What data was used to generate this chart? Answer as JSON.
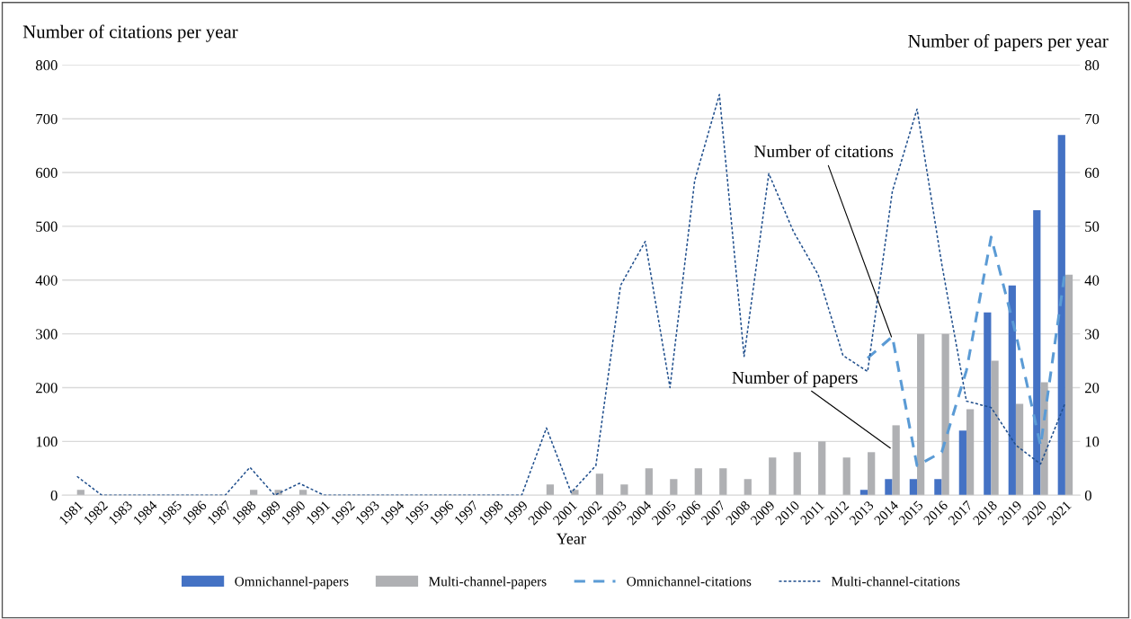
{
  "chart_data": {
    "type": "bar",
    "xlabel": "Year",
    "ylabel": "Number of citations per year",
    "y2label": "Number of papers per year",
    "categories": [
      "1981",
      "1982",
      "1983",
      "1984",
      "1985",
      "1986",
      "1987",
      "1988",
      "1989",
      "1990",
      "1991",
      "1992",
      "1993",
      "1994",
      "1995",
      "1996",
      "1997",
      "1998",
      "1999",
      "2000",
      "2001",
      "2002",
      "2003",
      "2004",
      "2005",
      "2006",
      "2007",
      "2008",
      "2009",
      "2010",
      "2011",
      "2012",
      "2013",
      "2014",
      "2015",
      "2016",
      "2017",
      "2018",
      "2019",
      "2020",
      "2021"
    ],
    "series": [
      {
        "name": "Omnichannel-papers",
        "axis": "y2",
        "color": "#4472c4",
        "values": [
          0,
          0,
          0,
          0,
          0,
          0,
          0,
          0,
          0,
          0,
          0,
          0,
          0,
          0,
          0,
          0,
          0,
          0,
          0,
          0,
          0,
          0,
          0,
          0,
          0,
          0,
          0,
          0,
          0,
          0,
          0,
          0,
          1,
          3,
          3,
          3,
          12,
          34,
          39,
          53,
          67
        ]
      },
      {
        "name": "Multi-channel-papers",
        "axis": "y2",
        "color": "#afb0b3",
        "values": [
          1,
          0,
          0,
          0,
          0,
          0,
          0,
          1,
          1,
          1,
          0,
          0,
          0,
          0,
          0,
          0,
          0,
          0,
          0,
          2,
          1,
          4,
          2,
          5,
          3,
          5,
          5,
          3,
          7,
          8,
          10,
          7,
          8,
          13,
          30,
          30,
          16,
          25,
          17,
          21,
          41
        ]
      },
      {
        "name": "Omnichannel-citations",
        "type": "line",
        "line_style": "dashed",
        "color": "#5b9bd5",
        "values": [
          null,
          null,
          null,
          null,
          null,
          null,
          null,
          null,
          null,
          null,
          null,
          null,
          null,
          null,
          null,
          null,
          null,
          null,
          null,
          null,
          null,
          null,
          null,
          null,
          null,
          null,
          null,
          null,
          null,
          null,
          null,
          null,
          255,
          295,
          55,
          80,
          232,
          480,
          300,
          92,
          420
        ]
      },
      {
        "name": "Multi-channel-citations",
        "type": "line",
        "line_style": "dotted",
        "color": "#1f4e8c",
        "values": [
          35,
          0,
          0,
          0,
          0,
          0,
          0,
          52,
          0,
          22,
          0,
          0,
          0,
          0,
          0,
          0,
          0,
          0,
          0,
          125,
          5,
          55,
          390,
          472,
          200,
          585,
          745,
          258,
          598,
          490,
          410,
          260,
          230,
          565,
          718,
          430,
          175,
          163,
          93,
          58,
          172
        ]
      }
    ],
    "ylim": [
      0,
      800
    ],
    "yticks": [
      0,
      100,
      200,
      300,
      400,
      500,
      600,
      700,
      800
    ],
    "y2lim": [
      0,
      80
    ],
    "y2ticks": [
      0,
      10,
      20,
      30,
      40,
      50,
      60,
      70,
      80
    ],
    "grid": "y",
    "legend": "bottom",
    "annotations": [
      {
        "text": "Number of citations",
        "x": "2014",
        "y": 290
      },
      {
        "text": "Number of papers",
        "x": "2014",
        "y": 85
      }
    ]
  }
}
